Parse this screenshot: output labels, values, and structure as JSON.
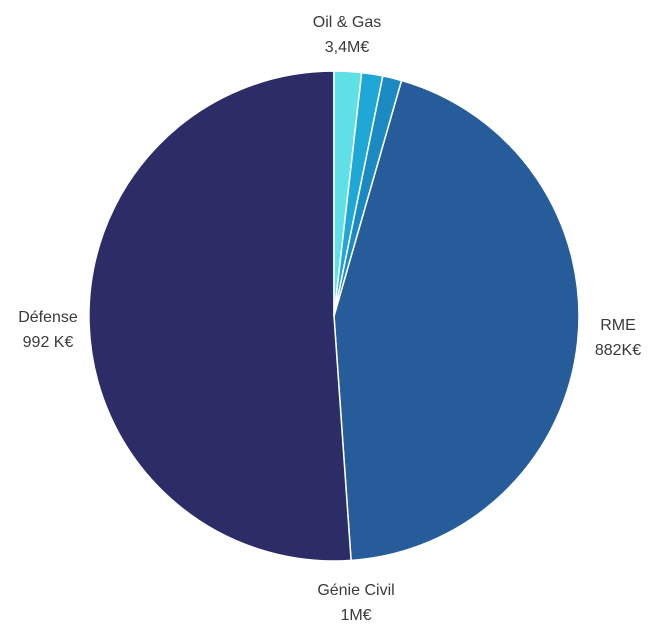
{
  "chart_data": {
    "type": "pie",
    "title": "",
    "slices": [
      {
        "label": "Oil & Gas",
        "value_label": "3,4M€",
        "value": 3.4,
        "color": "#2c2c66"
      },
      {
        "label": "RME",
        "value_label": "882K€",
        "value": 0.882,
        "color": "#265c9a"
      },
      {
        "label": "Génie Civil",
        "value_label": "1M€",
        "value": 1.0,
        "color": "#1c8ac2"
      },
      {
        "label": "Défense",
        "value_label": "992 K€",
        "value": 0.992,
        "color": "#5fe0e6"
      }
    ],
    "slice_order_note": "",
    "legend": "none"
  }
}
